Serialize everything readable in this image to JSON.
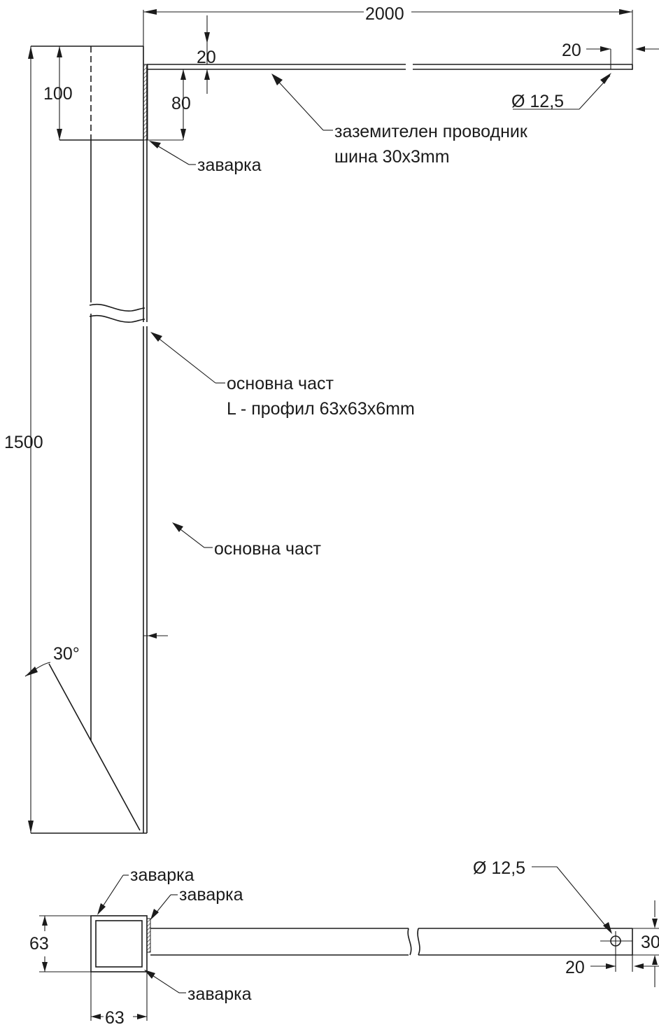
{
  "dimensions": {
    "overall_length": "2000",
    "end_offset_top": "20",
    "bar_offset_top": "20",
    "hole_top": "Ø 12,5",
    "sleeve_height": "100",
    "weld_height": "80",
    "total_height": "1500",
    "tip_angle": "30°",
    "profile_width": "63",
    "profile_depth": "63",
    "hole_bottom": "Ø 12,5",
    "bar_width": "30",
    "end_offset_bottom": "20"
  },
  "labels": {
    "conductor_line1": "заземителен проводник",
    "conductor_line2": "шина 30x3mm",
    "weld_top": "заварка",
    "main_part_line1": "основна част",
    "main_part_line2": "L - профил 63x63x6mm",
    "main_part_lower": "основна част",
    "weld_plan_1": "заварка",
    "weld_plan_2": "заварка",
    "weld_plan_3": "заварка"
  }
}
